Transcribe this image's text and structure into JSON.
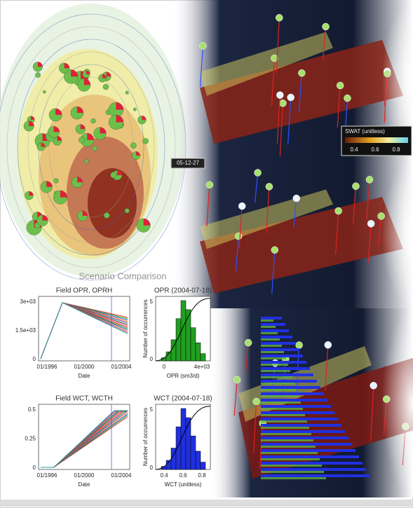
{
  "map": {
    "title": "Scenario Comparison"
  },
  "views3d": {
    "colorbar_title": "SWAT (unitless)",
    "colorbar_ticks": [
      "0.4",
      "0.6",
      "0.8"
    ],
    "date": "05-12-27"
  },
  "plots": [
    {
      "title": "Field OPR, OPRH",
      "y_ticks": [
        "3e+03",
        "1.5e+03",
        "0"
      ],
      "x_ticks": [
        "01/1996",
        "01/2000",
        "01/2004"
      ],
      "x_label": "Date"
    },
    {
      "title": "OPR (2004-07-18)",
      "y_label": "Number of occurrences",
      "x_label": "OPR (sm3/d)",
      "x_ticks": [
        "0",
        "4e+03"
      ],
      "y_ticks": [
        "0",
        "5"
      ]
    },
    {
      "title": "Field WCT, WCTH",
      "y_ticks": [
        "0.5",
        "0.25",
        "0"
      ],
      "x_ticks": [
        "01/1996",
        "01/2000",
        "01/2004"
      ],
      "x_label": "Date"
    },
    {
      "title": "WCT (2004-07-18)",
      "y_label": "Number of occurrences",
      "x_label": "WCT (unitless)",
      "x_ticks": [
        "0.4",
        "0.6",
        "0.8"
      ],
      "y_ticks": [
        "0",
        "5"
      ]
    }
  ]
}
